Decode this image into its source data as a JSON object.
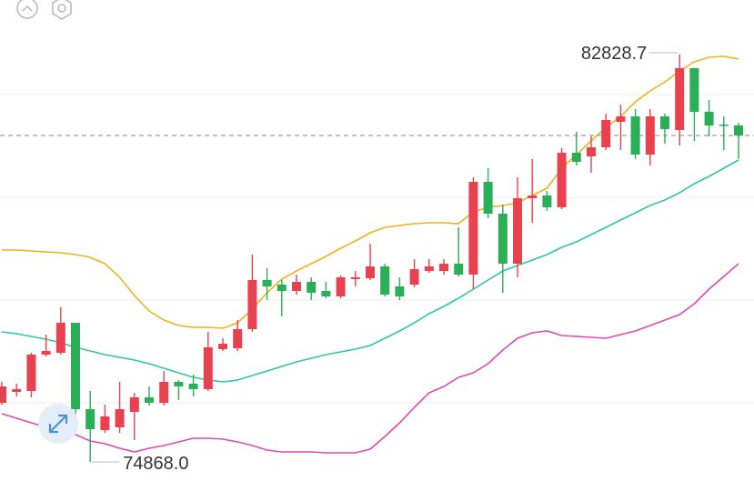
{
  "chart_data": {
    "type": "candlestick",
    "ylim": [
      74495,
      83895
    ],
    "up_color": "#e8414f",
    "down_color": "#2aae57",
    "open": [
      76023,
      76236,
      76254,
      76965,
      77001,
      77587,
      75899,
      75490,
      75543,
      75846,
      76130,
      76023,
      76432,
      76396,
      76290,
      77072,
      77089,
      77463,
      78422,
      78333,
      78209,
      78387,
      78209,
      78102,
      78440,
      78458,
      78689,
      78298,
      78333,
      78600,
      78600,
      78742,
      78529,
      80341,
      79719,
      78742,
      80021,
      80075,
      79844,
      80910,
      80839,
      81017,
      81514,
      81621,
      80874,
      81621,
      81354,
      82563,
      81710,
      81461,
      81443
    ],
    "high": [
      76432,
      76396,
      77001,
      77356,
      77889,
      77587,
      76254,
      75988,
      76432,
      76219,
      76343,
      76645,
      76467,
      76574,
      77409,
      77285,
      77640,
      78920,
      78653,
      78422,
      78529,
      78475,
      78387,
      78511,
      78600,
      79133,
      78742,
      78475,
      78831,
      78831,
      78831,
      79453,
      80430,
      80608,
      79897,
      80430,
      80786,
      80164,
      80999,
      81319,
      81230,
      81674,
      81852,
      81763,
      81763,
      81674,
      82828.7,
      82563,
      81941,
      81621,
      81496
    ],
    "low": [
      75988,
      76148,
      76130,
      76929,
      76965,
      75686,
      74868.0,
      75437,
      75437,
      75295,
      75970,
      75970,
      76077,
      76148,
      76254,
      77036,
      77036,
      77409,
      78031,
      77711,
      78138,
      78031,
      78067,
      78067,
      78298,
      78422,
      78102,
      78031,
      78280,
      78564,
      78529,
      78493,
      78244,
      79631,
      78173,
      78475,
      79542,
      79773,
      79808,
      80661,
      80519,
      80963,
      80963,
      80786,
      80661,
      81088,
      81052,
      81141,
      81230,
      80963,
      80786
    ],
    "close": [
      76343,
      76290,
      76965,
      77036,
      77587,
      75899,
      75508,
      75757,
      75899,
      76130,
      76023,
      76432,
      76343,
      76290,
      77107,
      77178,
      77463,
      78422,
      78298,
      78209,
      78387,
      78173,
      78102,
      78475,
      78475,
      78689,
      78138,
      78102,
      78635,
      78689,
      78742,
      78529,
      80341,
      79719,
      78742,
      80021,
      80075,
      79844,
      80910,
      80732,
      81017,
      81550,
      81621,
      80874,
      81621,
      81372,
      82563,
      81710,
      81443,
      81443,
      81248
    ],
    "lines": [
      {
        "color": "#f0b21c",
        "values": [
          79009,
          79009,
          78991,
          78973,
          78955,
          78920,
          78866,
          78742,
          78475,
          78120,
          77818,
          77640,
          77533,
          77498,
          77498,
          77480,
          77587,
          77853,
          78173,
          78440,
          78600,
          78742,
          78884,
          79044,
          79186,
          79346,
          79453,
          79488,
          79524,
          79541,
          79541,
          79524,
          79755,
          79843,
          79879,
          79932,
          80074,
          80217,
          80608,
          80874,
          81141,
          81407,
          81620,
          81905,
          82118,
          82296,
          82509,
          82687,
          82775,
          82793,
          82740
        ]
      },
      {
        "color": "#2ec99a",
        "values": [
          77409,
          77373,
          77320,
          77267,
          77196,
          77107,
          77036,
          76965,
          76911,
          76858,
          76787,
          76698,
          76609,
          76520,
          76467,
          76432,
          76467,
          76556,
          76645,
          76734,
          76823,
          76894,
          76965,
          77018,
          77071,
          77143,
          77285,
          77427,
          77587,
          77764,
          77907,
          78066,
          78244,
          78422,
          78600,
          78706,
          78813,
          78920,
          79062,
          79168,
          79310,
          79453,
          79595,
          79737,
          79879,
          79986,
          80128,
          80306,
          80448,
          80608,
          80768
        ]
      },
      {
        "color": "#e048b4",
        "values": [
          75810,
          75721,
          75632,
          75543,
          75454,
          75401,
          75277,
          75223,
          75134,
          75063,
          75134,
          75188,
          75259,
          75330,
          75330,
          75312,
          75259,
          75188,
          75099,
          75063,
          75063,
          75063,
          75045,
          75045,
          75045,
          75117,
          75365,
          75632,
          75934,
          76218,
          76343,
          76520,
          76609,
          76787,
          77054,
          77285,
          77391,
          77427,
          77338,
          77320,
          77302,
          77285,
          77356,
          77427,
          77533,
          77640,
          77747,
          77960,
          78244,
          78493,
          78742
        ]
      }
    ],
    "annotations": [
      {
        "value": 82828.7,
        "label": "82828.7"
      },
      {
        "value": 74868.0,
        "label": "74868.0"
      }
    ]
  }
}
